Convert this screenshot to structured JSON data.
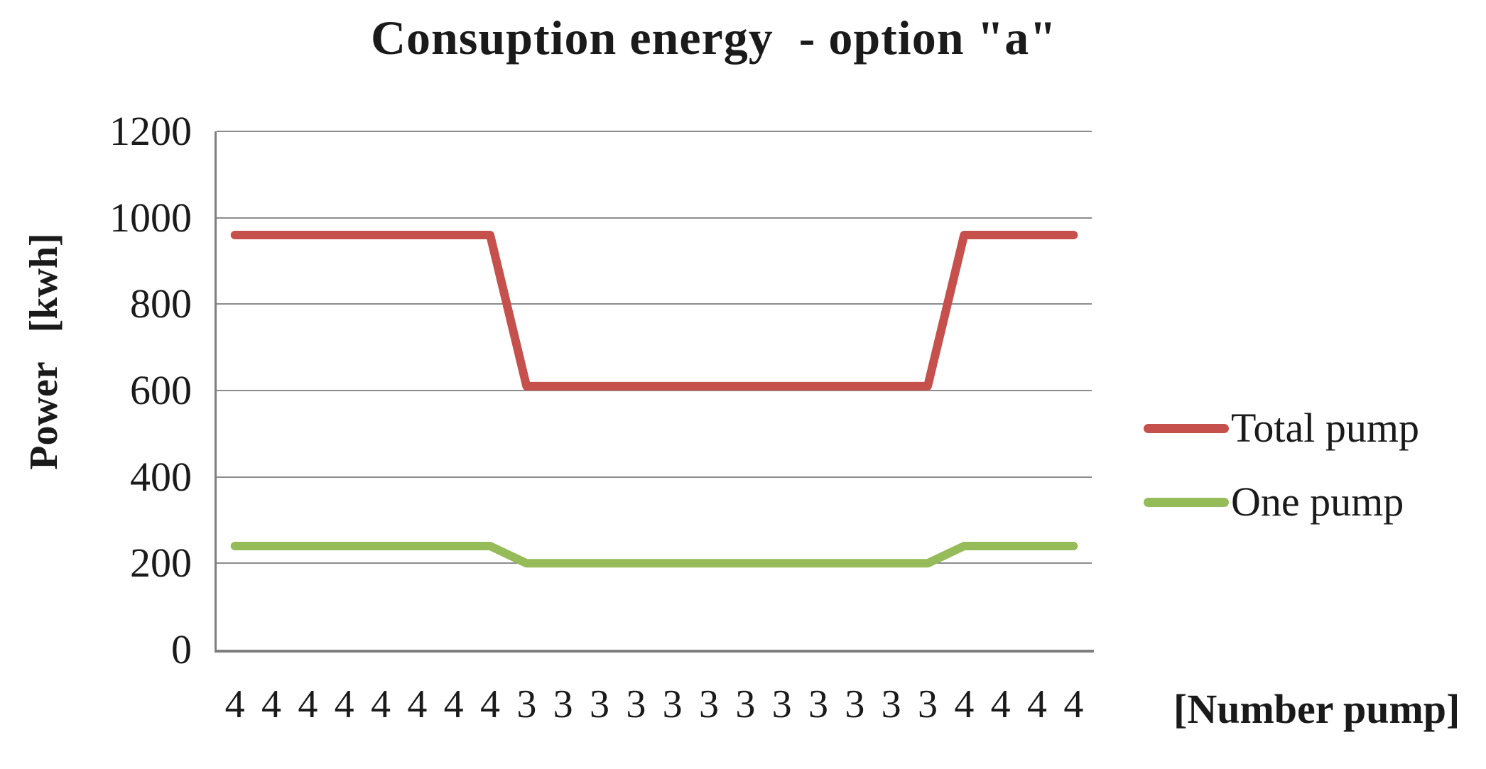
{
  "page": {
    "background": "#FFFFFF"
  },
  "chart_data": {
    "type": "line",
    "title": "Consuption energy  - option \"a\"",
    "ylabel": "Power   [kwh]",
    "xlabel": "[Number pump]",
    "ylim": [
      0,
      1200
    ],
    "ytick_interval": 200,
    "yticks": [
      1200,
      1000,
      800,
      600,
      400,
      200,
      0
    ],
    "categories": [
      "4",
      "4",
      "4",
      "4",
      "4",
      "4",
      "4",
      "4",
      "3",
      "3",
      "3",
      "3",
      "3",
      "3",
      "3",
      "3",
      "3",
      "3",
      "3",
      "3",
      "4",
      "4",
      "4",
      "4"
    ],
    "series": [
      {
        "name": "Total pump",
        "color": "#C6504C",
        "values": [
          960,
          960,
          960,
          960,
          960,
          960,
          960,
          960,
          610,
          610,
          610,
          610,
          610,
          610,
          610,
          610,
          610,
          610,
          610,
          610,
          960,
          960,
          960,
          960
        ]
      },
      {
        "name": "One pump",
        "color": "#96BB59",
        "values": [
          240,
          240,
          240,
          240,
          240,
          240,
          240,
          240,
          200,
          200,
          200,
          200,
          200,
          200,
          200,
          200,
          200,
          200,
          200,
          200,
          240,
          240,
          240,
          240
        ]
      }
    ],
    "legend_position": "right",
    "grid": true,
    "gridline_color": "#8C8C8C",
    "axis_color": "#7F7F7F",
    "text_color": "#1A1A1A"
  }
}
